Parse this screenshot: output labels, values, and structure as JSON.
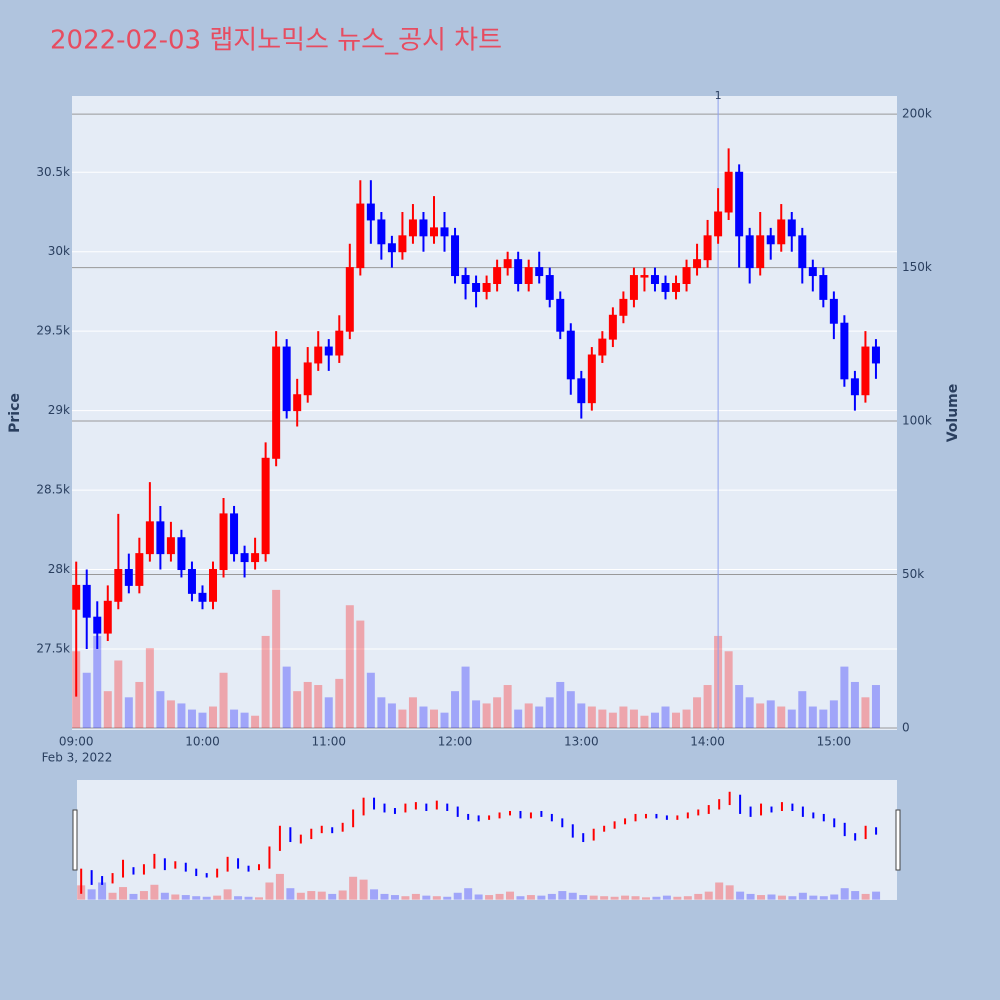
{
  "chart_data": {
    "type": "candlestick",
    "title": "2022-02-03 랩지노믹스 뉴스_공시 차트",
    "y_title": "Price",
    "y2_title": "Volume",
    "x_sublabel": "Feb 3, 2022",
    "increasing_color": "#ff0000",
    "decreasing_color": "#0000ff",
    "x": [
      "09:00",
      "09:05",
      "09:10",
      "09:15",
      "09:20",
      "09:25",
      "09:30",
      "09:35",
      "09:40",
      "09:45",
      "09:50",
      "09:55",
      "10:00",
      "10:05",
      "10:10",
      "10:15",
      "10:20",
      "10:25",
      "10:30",
      "10:35",
      "10:40",
      "10:45",
      "10:50",
      "10:55",
      "11:00",
      "11:05",
      "11:10",
      "11:15",
      "11:20",
      "11:25",
      "11:30",
      "11:35",
      "11:40",
      "11:45",
      "11:50",
      "11:55",
      "12:00",
      "12:05",
      "12:10",
      "12:15",
      "12:20",
      "12:25",
      "12:30",
      "12:35",
      "12:40",
      "12:45",
      "12:50",
      "12:55",
      "13:00",
      "13:05",
      "13:10",
      "13:15",
      "13:20",
      "13:25",
      "13:30",
      "13:35",
      "13:40",
      "13:45",
      "13:50",
      "13:55",
      "14:00",
      "14:05",
      "14:10",
      "14:15",
      "14:20",
      "14:25",
      "14:30",
      "14:35",
      "14:40",
      "14:45",
      "14:50",
      "14:55",
      "15:00",
      "15:05",
      "15:10",
      "15:15",
      "15:20"
    ],
    "open": [
      27750,
      27900,
      27700,
      27600,
      27800,
      28000,
      27900,
      28100,
      28300,
      28100,
      28200,
      28000,
      27850,
      27800,
      28000,
      28350,
      28100,
      28050,
      28100,
      28700,
      29400,
      29000,
      29100,
      29300,
      29400,
      29350,
      29500,
      29900,
      30300,
      30200,
      30050,
      30000,
      30100,
      30200,
      30100,
      30150,
      30100,
      29850,
      29800,
      29750,
      29800,
      29900,
      29950,
      29800,
      29900,
      29850,
      29700,
      29500,
      29200,
      29050,
      29350,
      29450,
      29600,
      29700,
      29850,
      29850,
      29800,
      29750,
      29800,
      29900,
      29950,
      30100,
      30250,
      30500,
      30100,
      29900,
      30100,
      30050,
      30200,
      30100,
      29900,
      29850,
      29700,
      29550,
      29200,
      29100,
      29400
    ],
    "high": [
      28050,
      28000,
      27800,
      27900,
      28350,
      28100,
      28200,
      28550,
      28400,
      28300,
      28250,
      28050,
      27900,
      28050,
      28450,
      28400,
      28150,
      28200,
      28800,
      29500,
      29450,
      29200,
      29400,
      29500,
      29450,
      29600,
      30050,
      30450,
      30450,
      30250,
      30100,
      30250,
      30300,
      30250,
      30350,
      30250,
      30150,
      29900,
      29850,
      29850,
      29950,
      30000,
      30000,
      29950,
      30000,
      29900,
      29750,
      29550,
      29250,
      29400,
      29500,
      29650,
      29750,
      29900,
      29900,
      29900,
      29850,
      29850,
      29950,
      30050,
      30200,
      30400,
      30650,
      30550,
      30150,
      30250,
      30150,
      30300,
      30250,
      30150,
      29950,
      29900,
      29750,
      29600,
      29250,
      29500,
      29450
    ],
    "low": [
      27200,
      27500,
      27500,
      27550,
      27750,
      27850,
      27850,
      28050,
      28000,
      28050,
      27950,
      27800,
      27750,
      27750,
      27950,
      28050,
      27950,
      28000,
      28050,
      28650,
      28950,
      28900,
      29050,
      29250,
      29250,
      29300,
      29450,
      29850,
      30050,
      29950,
      29900,
      29950,
      30050,
      30000,
      30050,
      30000,
      29800,
      29700,
      29650,
      29700,
      29750,
      29850,
      29750,
      29750,
      29800,
      29650,
      29450,
      29100,
      28950,
      29000,
      29300,
      29400,
      29550,
      29650,
      29750,
      29750,
      29700,
      29700,
      29750,
      29850,
      29900,
      30050,
      30200,
      29900,
      29800,
      29850,
      29950,
      30000,
      30000,
      29800,
      29750,
      29650,
      29450,
      29150,
      29000,
      29050,
      29200
    ],
    "close": [
      27900,
      27700,
      27600,
      27800,
      28000,
      27900,
      28100,
      28300,
      28100,
      28200,
      28000,
      27850,
      27800,
      28000,
      28350,
      28100,
      28050,
      28100,
      28700,
      29400,
      29000,
      29100,
      29300,
      29400,
      29350,
      29500,
      29900,
      30300,
      30200,
      30050,
      30000,
      30100,
      30200,
      30100,
      30150,
      30100,
      29850,
      29800,
      29750,
      29800,
      29900,
      29950,
      29800,
      29900,
      29850,
      29700,
      29500,
      29200,
      29050,
      29350,
      29450,
      29600,
      29700,
      29850,
      29850,
      29800,
      29750,
      29800,
      29900,
      29950,
      30100,
      30250,
      30500,
      30100,
      29900,
      30100,
      30050,
      30200,
      30100,
      29900,
      29850,
      29700,
      29550,
      29200,
      29100,
      29400,
      29300
    ],
    "volume": [
      25000,
      18000,
      30000,
      12000,
      22000,
      10000,
      15000,
      26000,
      12000,
      9000,
      8000,
      6000,
      5000,
      7000,
      18000,
      6000,
      5000,
      4000,
      30000,
      45000,
      20000,
      12000,
      15000,
      14000,
      10000,
      16000,
      40000,
      35000,
      18000,
      10000,
      8000,
      6000,
      10000,
      7000,
      6000,
      5000,
      12000,
      20000,
      9000,
      8000,
      10000,
      14000,
      6000,
      8000,
      7000,
      10000,
      15000,
      12000,
      8000,
      7000,
      6000,
      5000,
      7000,
      6000,
      4000,
      5000,
      7000,
      5000,
      6000,
      10000,
      14000,
      30000,
      25000,
      14000,
      10000,
      8000,
      9000,
      7000,
      6000,
      12000,
      7000,
      6000,
      9000,
      20000,
      15000,
      10000,
      14000
    ],
    "xlim": [
      "08:58",
      "15:30"
    ],
    "xticks": [
      "09:00",
      "10:00",
      "11:00",
      "12:00",
      "13:00",
      "14:00",
      "15:00"
    ],
    "ylim": [
      26990,
      30980
    ],
    "yticks": [
      {
        "value": 27500,
        "label": "27.5k"
      },
      {
        "value": 28000,
        "label": "28k"
      },
      {
        "value": 28500,
        "label": "28.5k"
      },
      {
        "value": 29000,
        "label": "29k"
      },
      {
        "value": 29500,
        "label": "29.5k"
      },
      {
        "value": 30000,
        "label": "30k"
      },
      {
        "value": 30500,
        "label": "30.5k"
      }
    ],
    "y2lim": [
      -650,
      205900
    ],
    "y2ticks": [
      0,
      {
        "value": 50000,
        "label": "50k"
      },
      {
        "value": 100000,
        "label": "100k"
      },
      {
        "value": 150000,
        "label": "150k"
      },
      {
        "value": 200000,
        "label": "200k"
      }
    ],
    "annotations": [
      {
        "x": "14:05",
        "text": "1"
      }
    ]
  }
}
